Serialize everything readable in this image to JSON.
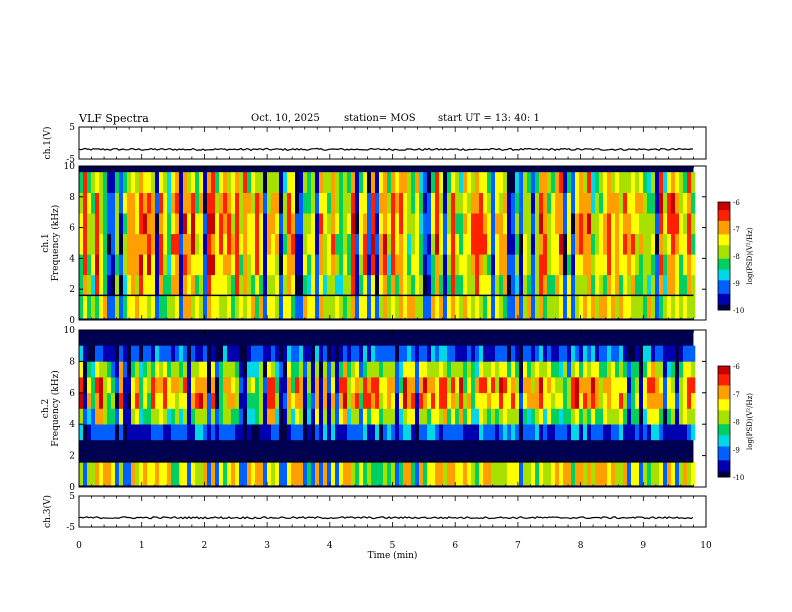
{
  "header": {
    "title": "VLF Spectra",
    "date": "Oct. 10, 2025",
    "station": "station= MOS",
    "start_ut": "start  UT =   13: 40: 1"
  },
  "colors": {
    "background": "#ffffff",
    "axis": "#000000",
    "colormap": [
      "#000040",
      "#0000b0",
      "#0060ff",
      "#00d8e8",
      "#00d060",
      "#a8e000",
      "#ffff00",
      "#ffa000",
      "#ff2000",
      "#c80000"
    ]
  },
  "chart_data": [
    {
      "type": "line",
      "name": "ch1-voltage",
      "ylabel": "ch.1(V)",
      "ylim": [
        -5,
        5
      ],
      "yticks": [
        "5",
        "-5"
      ],
      "xlim": [
        0,
        10
      ],
      "trace_level": -2
    },
    {
      "type": "heatmap",
      "name": "ch1-spectrogram",
      "ylabel_line1": "ch.1",
      "ylabel_line2": "Frequency (kHz)",
      "ylim": [
        0,
        10
      ],
      "yticks": [
        "0",
        "2",
        "4",
        "6",
        "8",
        "10"
      ],
      "xlim": [
        0,
        10
      ],
      "data_end_min": 9.8,
      "band_low_khz": [
        0.1,
        1.6
      ],
      "band_high_khz": [
        1.6,
        9.6
      ],
      "colorbar": {
        "label": "log(PSD)(V²/Hz)",
        "ticks": [
          "-6",
          "-7",
          "-8",
          "-9",
          "-10"
        ],
        "range": [
          -10,
          -6
        ]
      }
    },
    {
      "type": "heatmap",
      "name": "ch2-spectrogram",
      "ylabel_line1": "ch.2",
      "ylabel_line2": "Frequency (kHz)",
      "ylim": [
        0,
        10
      ],
      "yticks": [
        "0",
        "2",
        "4",
        "6",
        "8",
        "10"
      ],
      "xlim": [
        0,
        10
      ],
      "data_end_min": 9.8,
      "band_low_khz": [
        0.1,
        1.6
      ],
      "band_high_khz": [
        3.0,
        9.0
      ],
      "colorbar": {
        "label": "log(PSD)(V²/Hz)",
        "ticks": [
          "-6",
          "-7",
          "-8",
          "-9",
          "-10"
        ],
        "range": [
          -10,
          -6
        ]
      }
    },
    {
      "type": "line",
      "name": "ch3-voltage",
      "ylabel": "ch.3(V)",
      "ylim": [
        -5,
        5
      ],
      "yticks": [
        "5",
        "-5"
      ],
      "xlim": [
        0,
        10
      ],
      "trace_level": -2
    }
  ],
  "xaxis": {
    "label": "Time (min)",
    "ticks": [
      "0",
      "1",
      "2",
      "3",
      "4",
      "5",
      "6",
      "7",
      "8",
      "9",
      "10"
    ]
  }
}
